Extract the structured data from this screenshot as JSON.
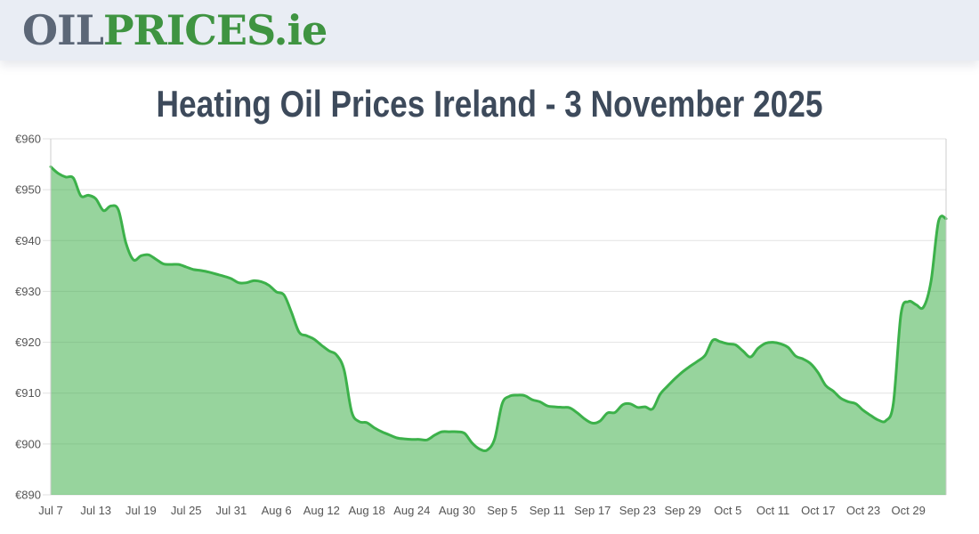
{
  "header": {
    "logo": {
      "oil": "OIL",
      "prices": "PRICES",
      "tld": ".ie"
    }
  },
  "title": "Heating Oil Prices Ireland - 3 November 2025",
  "colors": {
    "header_bg": "#e9edf4",
    "logo_gray": "#5c6777",
    "logo_green": "#3f9441",
    "title_color": "#3d4a5b",
    "line": "#3cb14a",
    "fill": "rgba(66,176,77,0.55)",
    "grid": "#e2e2e2",
    "axis_border": "#cccccc",
    "tick_label": "#555555"
  },
  "chart_data": {
    "type": "area",
    "title": "Heating Oil Prices Ireland - 3 November 2025",
    "ylabel": "",
    "xlabel": "",
    "y_tick_prefix": "€",
    "ylim": [
      890,
      960
    ],
    "y_ticks": [
      890,
      900,
      910,
      920,
      930,
      940,
      950,
      960
    ],
    "grid": "horizontal-only",
    "legend": "none",
    "x_tick_step": 6,
    "x_tick_labels": [
      "Jul 7",
      "Jul 13",
      "Jul 19",
      "Jul 25",
      "Jul 31",
      "Aug 6",
      "Aug 12",
      "Aug 18",
      "Aug 24",
      "Aug 30",
      "Sep 5",
      "Sep 11",
      "Sep 17",
      "Sep 23",
      "Sep 29",
      "Oct 5",
      "Oct 11",
      "Oct 17",
      "Oct 23",
      "Oct 29"
    ],
    "x": [
      "Jul 7",
      "Jul 8",
      "Jul 9",
      "Jul 10",
      "Jul 11",
      "Jul 12",
      "Jul 13",
      "Jul 14",
      "Jul 15",
      "Jul 16",
      "Jul 17",
      "Jul 18",
      "Jul 19",
      "Jul 20",
      "Jul 21",
      "Jul 22",
      "Jul 23",
      "Jul 24",
      "Jul 25",
      "Jul 26",
      "Jul 27",
      "Jul 28",
      "Jul 29",
      "Jul 30",
      "Jul 31",
      "Aug 1",
      "Aug 2",
      "Aug 3",
      "Aug 4",
      "Aug 5",
      "Aug 6",
      "Aug 7",
      "Aug 8",
      "Aug 9",
      "Aug 10",
      "Aug 11",
      "Aug 12",
      "Aug 13",
      "Aug 14",
      "Aug 15",
      "Aug 16",
      "Aug 17",
      "Aug 18",
      "Aug 19",
      "Aug 20",
      "Aug 21",
      "Aug 22",
      "Aug 23",
      "Aug 24",
      "Aug 25",
      "Aug 26",
      "Aug 27",
      "Aug 28",
      "Aug 29",
      "Aug 30",
      "Aug 31",
      "Sep 1",
      "Sep 2",
      "Sep 3",
      "Sep 4",
      "Sep 5",
      "Sep 6",
      "Sep 7",
      "Sep 8",
      "Sep 9",
      "Sep 10",
      "Sep 11",
      "Sep 12",
      "Sep 13",
      "Sep 14",
      "Sep 15",
      "Sep 16",
      "Sep 17",
      "Sep 18",
      "Sep 19",
      "Sep 20",
      "Sep 21",
      "Sep 22",
      "Sep 23",
      "Sep 24",
      "Sep 25",
      "Sep 26",
      "Sep 27",
      "Sep 28",
      "Sep 29",
      "Sep 30",
      "Oct 1",
      "Oct 2",
      "Oct 3",
      "Oct 4",
      "Oct 5",
      "Oct 6",
      "Oct 7",
      "Oct 8",
      "Oct 9",
      "Oct 10",
      "Oct 11",
      "Oct 12",
      "Oct 13",
      "Oct 14",
      "Oct 15",
      "Oct 16",
      "Oct 17",
      "Oct 18",
      "Oct 19",
      "Oct 20",
      "Oct 21",
      "Oct 22",
      "Oct 23",
      "Oct 24",
      "Oct 25",
      "Oct 26",
      "Oct 27",
      "Oct 28",
      "Oct 29",
      "Oct 30",
      "Oct 31",
      "Nov 1",
      "Nov 2",
      "Nov 3"
    ],
    "values": [
      954.5,
      953.2,
      952.5,
      952.3,
      948.8,
      948.9,
      948.2,
      945.9,
      946.8,
      946.0,
      939.5,
      936.2,
      937.0,
      937.2,
      936.3,
      935.4,
      935.3,
      935.3,
      934.8,
      934.3,
      934.1,
      933.8,
      933.4,
      933.0,
      932.5,
      931.7,
      931.7,
      932.1,
      931.9,
      931.2,
      929.9,
      929.3,
      925.9,
      922.0,
      921.3,
      920.6,
      919.4,
      918.3,
      917.5,
      914.5,
      906.3,
      904.4,
      904.2,
      903.2,
      902.4,
      901.8,
      901.2,
      901.0,
      900.9,
      900.9,
      900.8,
      901.7,
      902.4,
      902.4,
      902.4,
      902.1,
      900.2,
      899.0,
      898.8,
      901.0,
      907.9,
      909.4,
      909.6,
      909.5,
      908.7,
      908.3,
      907.5,
      907.3,
      907.2,
      907.1,
      906.1,
      904.9,
      904.1,
      904.5,
      906.1,
      906.2,
      907.7,
      907.9,
      907.2,
      907.3,
      906.9,
      909.8,
      911.4,
      912.9,
      914.2,
      915.3,
      916.3,
      917.5,
      920.4,
      920.1,
      919.7,
      919.5,
      918.3,
      917.1,
      918.8,
      919.8,
      920.0,
      919.7,
      919.0,
      917.3,
      916.7,
      915.8,
      914.0,
      911.5,
      910.4,
      909.0,
      908.3,
      907.9,
      906.6,
      905.6,
      904.7,
      904.6,
      908.0,
      925.5,
      928.0,
      927.4,
      926.9,
      932.0,
      943.8,
      944.3
    ]
  }
}
